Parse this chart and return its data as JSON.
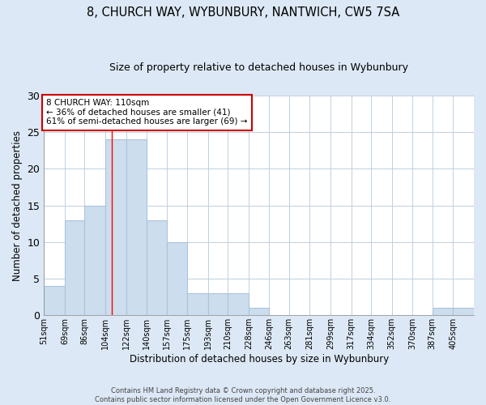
{
  "title1": "8, CHURCH WAY, WYBUNBURY, NANTWICH, CW5 7SA",
  "title2": "Size of property relative to detached houses in Wybunbury",
  "xlabel": "Distribution of detached houses by size in Wybunbury",
  "ylabel": "Number of detached properties",
  "bin_labels": [
    "51sqm",
    "69sqm",
    "86sqm",
    "104sqm",
    "122sqm",
    "140sqm",
    "157sqm",
    "175sqm",
    "193sqm",
    "210sqm",
    "228sqm",
    "246sqm",
    "263sqm",
    "281sqm",
    "299sqm",
    "317sqm",
    "334sqm",
    "352sqm",
    "370sqm",
    "387sqm",
    "405sqm"
  ],
  "bin_edges": [
    51,
    69,
    86,
    104,
    122,
    140,
    157,
    175,
    193,
    210,
    228,
    246,
    263,
    281,
    299,
    317,
    334,
    352,
    370,
    387,
    405,
    423
  ],
  "counts": [
    4,
    13,
    15,
    24,
    24,
    13,
    10,
    3,
    3,
    3,
    1,
    0,
    0,
    0,
    0,
    0,
    0,
    0,
    0,
    1,
    1
  ],
  "bar_color": "#ccdded",
  "bar_edge_color": "#aac4dc",
  "red_line_x": 110,
  "annotation_text": "8 CHURCH WAY: 110sqm\n← 36% of detached houses are smaller (41)\n61% of semi-detached houses are larger (69) →",
  "annotation_box_color": "#ffffff",
  "annotation_box_edge_color": "#cc0000",
  "ylim": [
    0,
    30
  ],
  "yticks": [
    0,
    5,
    10,
    15,
    20,
    25,
    30
  ],
  "footer_text": "Contains HM Land Registry data © Crown copyright and database right 2025.\nContains public sector information licensed under the Open Government Licence v3.0.",
  "background_color": "#dce8f5",
  "plot_background": "#ffffff"
}
